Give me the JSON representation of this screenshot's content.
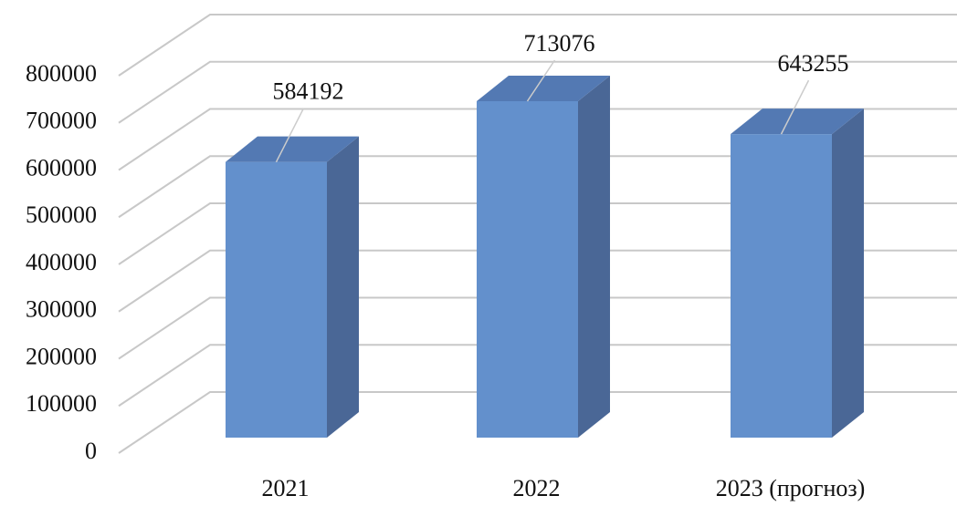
{
  "chart_data": {
    "type": "bar3d",
    "categories": [
      "2021",
      "2022",
      "2023 (прогноз)"
    ],
    "values": [
      584192,
      713076,
      643255
    ],
    "color": "#6390cc",
    "ylim": [
      0,
      800000
    ],
    "yticks": [
      0,
      100000,
      200000,
      300000,
      400000,
      500000,
      600000,
      700000,
      800000
    ],
    "grid": true
  }
}
